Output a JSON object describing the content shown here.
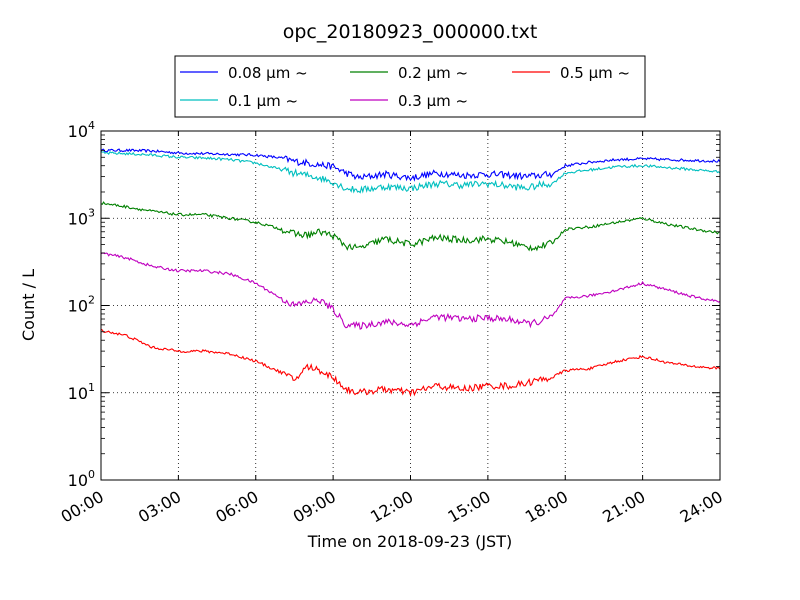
{
  "chart_data": {
    "type": "line",
    "title": "opc_20180923_000000.txt",
    "xlabel": "Time on 2018-09-23 (JST)",
    "ylabel": "Count / L",
    "yscale": "log",
    "ylim": [
      1,
      10000
    ],
    "xlim": [
      "00:00",
      "24:00"
    ],
    "grid": true,
    "legend_position": "top-center",
    "x_tick_labels": [
      "00:00",
      "03:00",
      "06:00",
      "09:00",
      "12:00",
      "15:00",
      "18:00",
      "21:00",
      "24:00"
    ],
    "y_tick_labels": [
      {
        "base": "10",
        "exp": "0"
      },
      {
        "base": "10",
        "exp": "1"
      },
      {
        "base": "10",
        "exp": "2"
      },
      {
        "base": "10",
        "exp": "3"
      },
      {
        "base": "10",
        "exp": "4"
      }
    ],
    "x_hours": [
      0,
      1,
      2,
      3,
      4,
      5,
      6,
      7,
      7.5,
      8,
      8.5,
      9,
      9.5,
      10,
      11,
      12,
      13,
      14,
      15,
      16,
      16.5,
      17,
      17.5,
      18,
      19,
      20,
      21,
      22,
      23,
      24
    ],
    "series": [
      {
        "name": "0.08 μm ~",
        "color": "#0000ff",
        "values": [
          6000,
          6000,
          5900,
          5600,
          5500,
          5400,
          5300,
          4900,
          4500,
          4300,
          4100,
          3900,
          3300,
          2900,
          3200,
          2900,
          3300,
          3100,
          3200,
          3100,
          3000,
          3100,
          3200,
          4000,
          4400,
          4700,
          4800,
          4700,
          4600,
          4500
        ]
      },
      {
        "name": "0.1 μm ~",
        "color": "#00bfbf",
        "values": [
          5600,
          5500,
          5300,
          5000,
          4900,
          4700,
          4300,
          3600,
          3300,
          3100,
          2900,
          2600,
          2200,
          2100,
          2300,
          2200,
          2500,
          2400,
          2500,
          2300,
          2200,
          2400,
          2500,
          3300,
          3600,
          3900,
          4000,
          3800,
          3600,
          3400
        ]
      },
      {
        "name": "0.2 μm ~",
        "color": "#008000",
        "values": [
          1500,
          1350,
          1200,
          1100,
          1100,
          1000,
          900,
          750,
          660,
          640,
          700,
          630,
          480,
          450,
          580,
          500,
          600,
          560,
          580,
          520,
          460,
          470,
          520,
          750,
          800,
          900,
          1000,
          850,
          750,
          680
        ]
      },
      {
        "name": "0.3 μm ~",
        "color": "#bf00bf",
        "values": [
          400,
          350,
          280,
          250,
          250,
          230,
          180,
          120,
          100,
          110,
          115,
          90,
          60,
          58,
          65,
          60,
          75,
          70,
          72,
          68,
          62,
          65,
          75,
          120,
          130,
          150,
          180,
          150,
          125,
          110
        ]
      },
      {
        "name": "0.5 μm ~",
        "color": "#ff0000",
        "values": [
          52,
          45,
          33,
          30,
          30,
          28,
          23,
          17,
          14,
          20,
          18,
          15,
          11,
          10,
          11,
          10,
          12,
          11,
          12,
          12,
          13,
          14,
          15,
          18,
          19,
          23,
          26,
          22,
          20,
          19
        ]
      }
    ]
  }
}
